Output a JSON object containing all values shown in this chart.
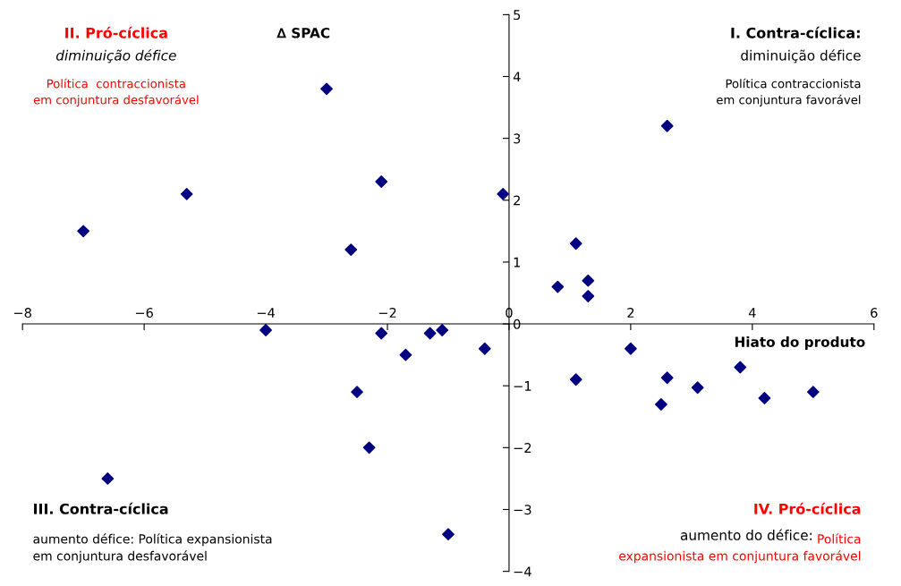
{
  "chart_data": {
    "type": "scatter",
    "xlabel": "Hiato do produto",
    "ylabel": "∆ SPAC",
    "series": [
      {
        "color": "#000080",
        "x": [
          -7.0,
          -5.3,
          -3.0,
          -2.1,
          -2.6,
          -4.0,
          -2.1,
          -1.7,
          -1.3,
          -1.1,
          -0.4,
          -2.5,
          -2.3,
          -6.6,
          -1.0,
          -0.1,
          1.1,
          0.8,
          1.3,
          1.3,
          2.6,
          2.0,
          1.1,
          2.6,
          2.5,
          3.1,
          3.8,
          4.2,
          5.0
        ],
        "values": [
          1.5,
          2.1,
          3.8,
          2.3,
          1.2,
          -0.1,
          -0.15,
          -0.5,
          -0.15,
          -0.1,
          -0.4,
          -1.1,
          -2.0,
          -2.5,
          -3.4,
          2.1,
          1.3,
          0.6,
          0.7,
          0.45,
          3.2,
          -0.4,
          -0.9,
          -0.87,
          -1.3,
          -1.03,
          -0.7,
          -1.2,
          -1.1
        ]
      }
    ],
    "marker": "diamond",
    "grid": false,
    "xlim": [
      -8,
      6
    ],
    "ylim": [
      -4,
      5
    ],
    "xticks": [
      -8,
      -6,
      -4,
      -2,
      0,
      2,
      4,
      6
    ],
    "yticks": [
      -4,
      -3,
      -2,
      -1,
      0,
      1,
      2,
      3,
      4,
      5
    ],
    "annotations": [
      "II. Pró-cíclica",
      "diminuição défice",
      "Política  contraccionista\nem conjuntura desfavorável",
      "I. Contra-cíclica:",
      "diminuição défice",
      "Política contraccionista\nem conjuntura favorável",
      "III. Contra-cíclica",
      "aumento défice: Política expansionista\nem conjuntura desfavorável",
      "IV. Pró-cíclica",
      "aumento do défice:",
      "Política\nexpansionista em conjuntura favorável"
    ]
  }
}
